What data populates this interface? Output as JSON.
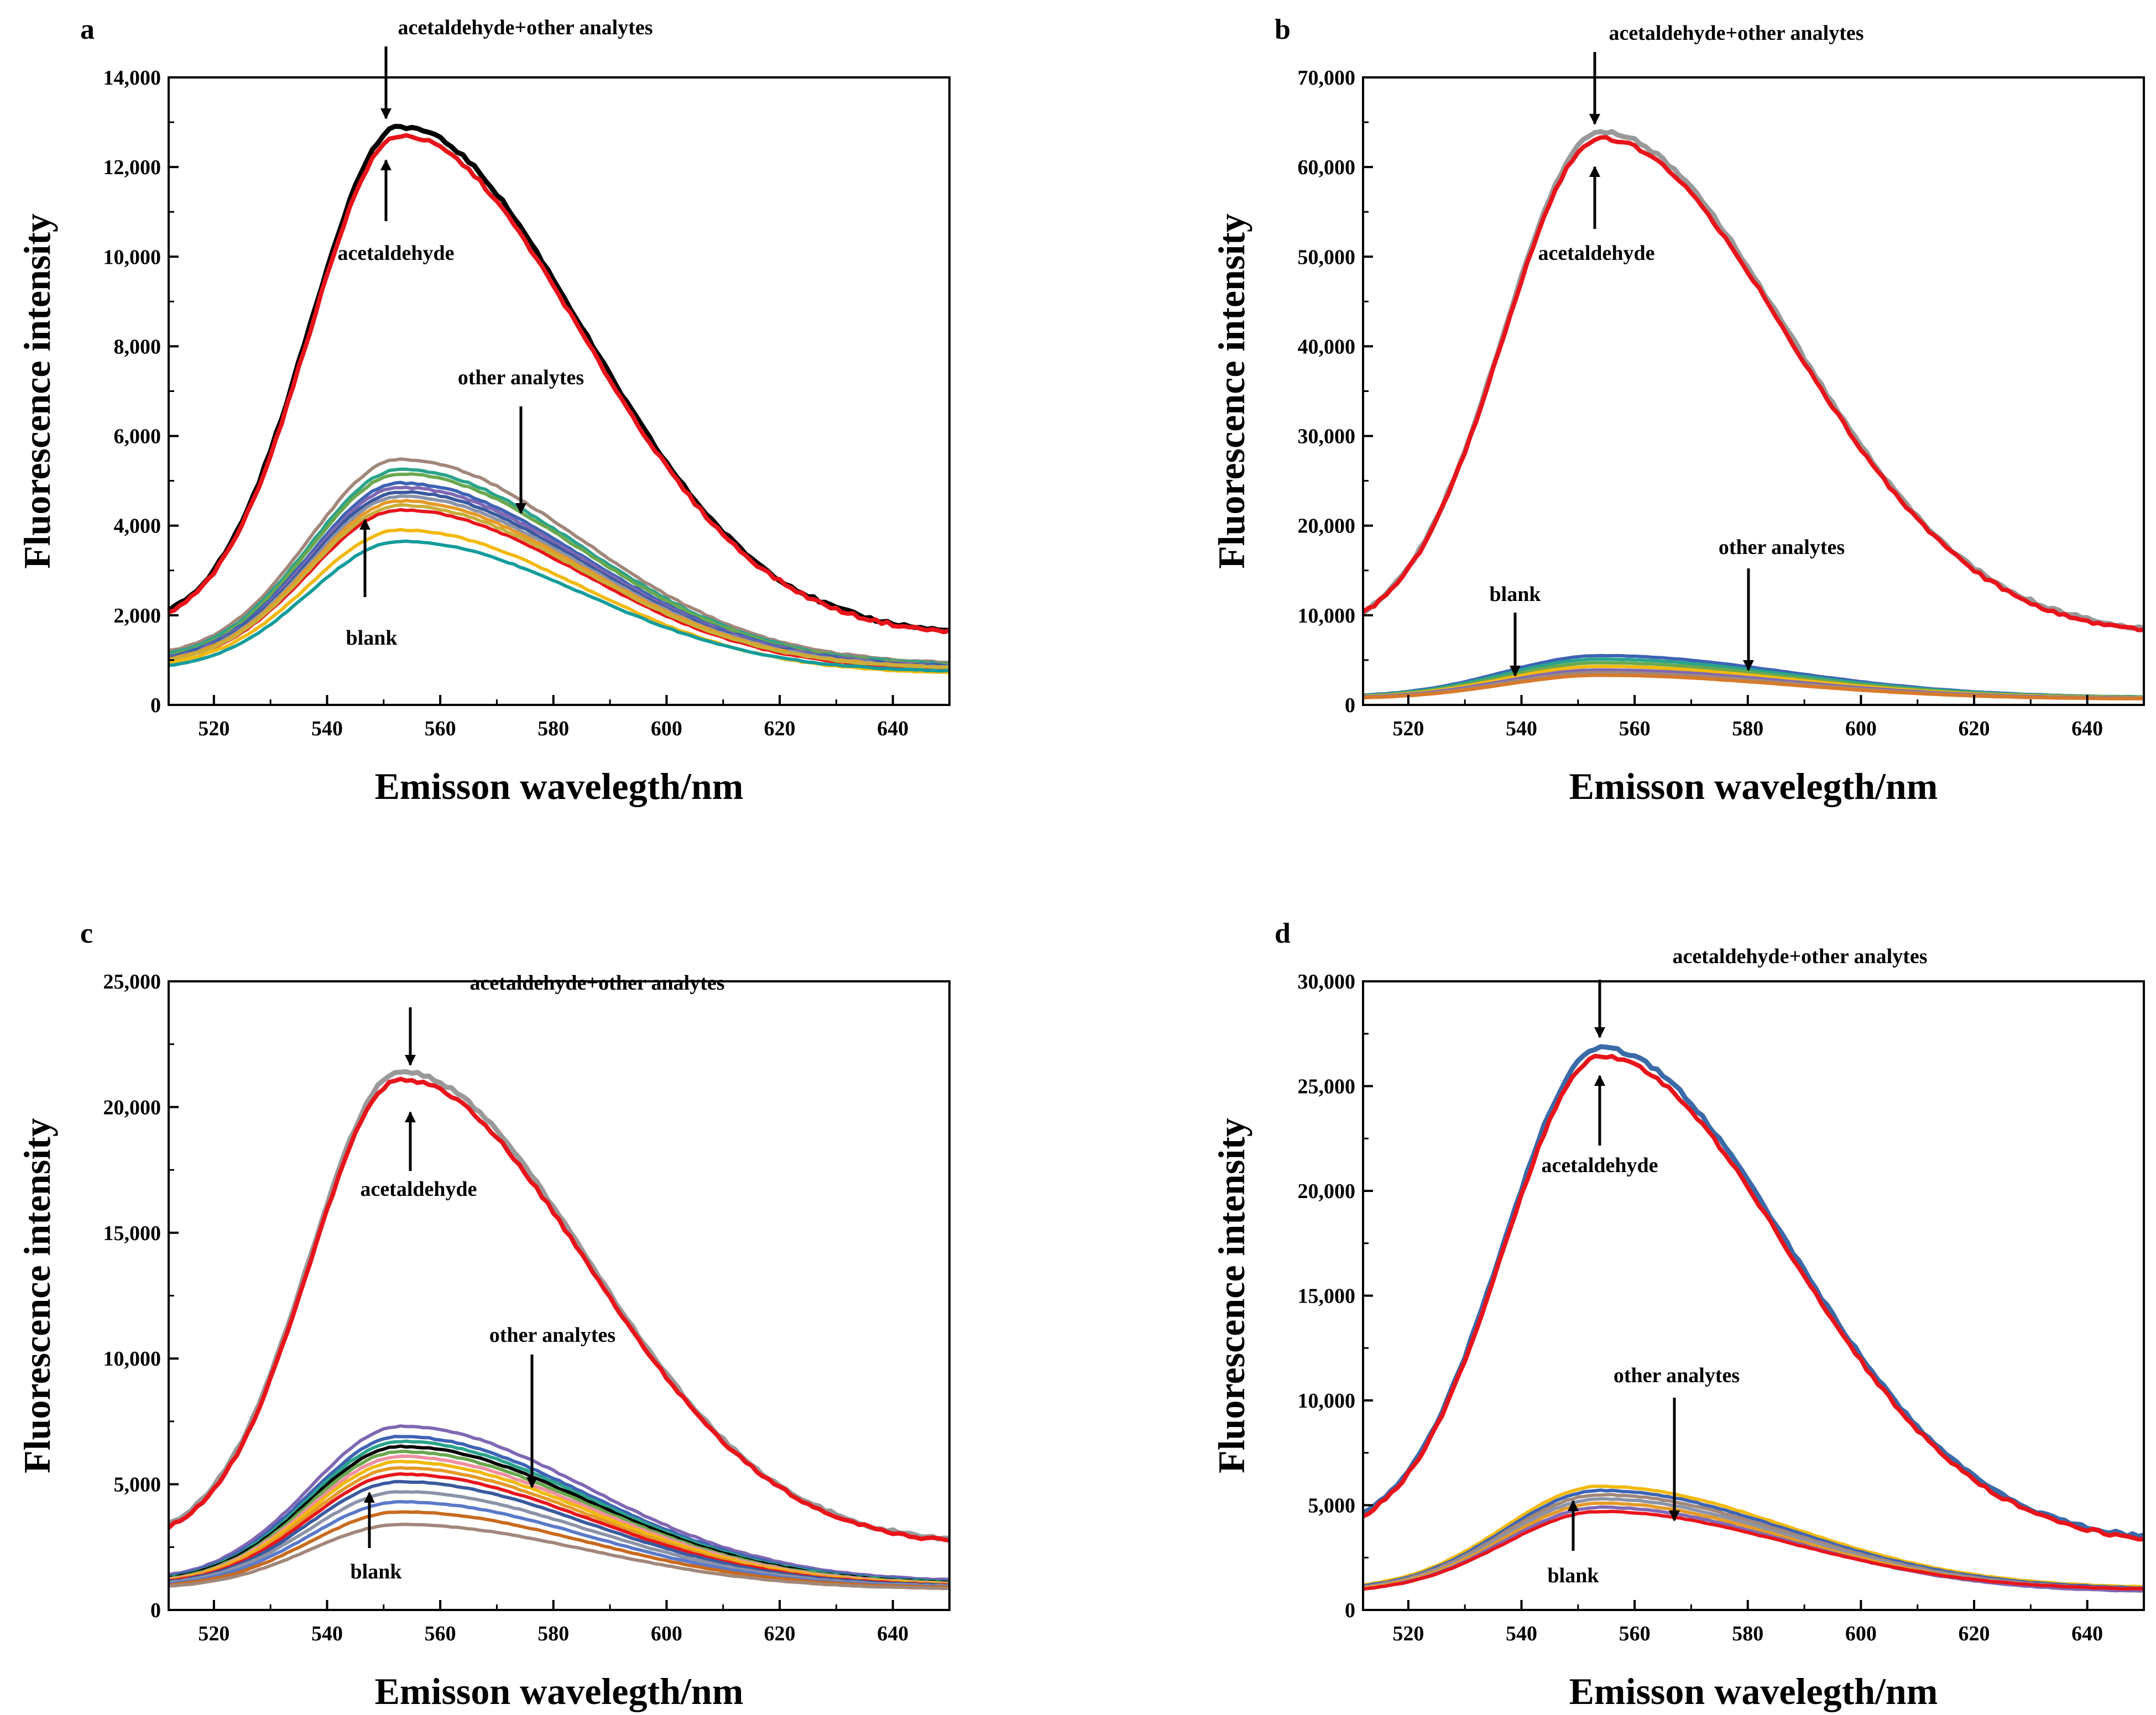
{
  "figure": {
    "description_free": true
  },
  "chart_data": [
    {
      "panel": "a",
      "type": "line",
      "xlabel": "Emisson wavelegth/nm",
      "ylabel": "Fluorescence intensity",
      "xlim": [
        512,
        650
      ],
      "ylim": [
        0,
        14000
      ],
      "xticks": [
        520,
        540,
        560,
        580,
        600,
        620,
        640
      ],
      "xtick_labels": [
        "520",
        "540",
        "560",
        "580",
        "600",
        "620",
        "640"
      ],
      "yticks": [
        0,
        2000,
        4000,
        6000,
        8000,
        10000,
        12000,
        14000
      ],
      "ytick_labels": [
        "0",
        "2,000",
        "4,000",
        "6,000",
        "8,000",
        "10,000",
        "12,000",
        "14,000"
      ],
      "peak": {
        "x": 553,
        "width_left": 16,
        "width_right": 32
      },
      "series": [
        {
          "name": "acetaldehyde+other analytes",
          "role": "main",
          "peak": 12900,
          "edge_left": 2100,
          "edge_right": 1650,
          "color": "#000000"
        },
        {
          "name": "acetaldehyde",
          "role": "main",
          "peak": 12700,
          "edge_left": 2050,
          "edge_right": 1630,
          "color": "#e8141b"
        },
        {
          "name": "blank",
          "role": "blank",
          "peak": 4350,
          "edge_left": 1000,
          "edge_right": 800,
          "color": "#e8141b"
        },
        {
          "name": "other analyte 1",
          "role": "other",
          "peak": 5480,
          "edge_left": 1200,
          "edge_right": 950,
          "color": "#a1877a"
        },
        {
          "name": "other analyte 2",
          "role": "other",
          "peak": 5250,
          "edge_left": 1150,
          "edge_right": 920,
          "color": "#2aa38b"
        },
        {
          "name": "other analyte 3",
          "role": "other",
          "peak": 5150,
          "edge_left": 1100,
          "edge_right": 900,
          "color": "#6aa84f"
        },
        {
          "name": "other analyte 4",
          "role": "other",
          "peak": 4950,
          "edge_left": 1080,
          "edge_right": 880,
          "color": "#3d63b4"
        },
        {
          "name": "other analyte 5",
          "role": "other",
          "peak": 4850,
          "edge_left": 1050,
          "edge_right": 870,
          "color": "#7f68b3"
        },
        {
          "name": "other analyte 6",
          "role": "other",
          "peak": 4750,
          "edge_left": 1050,
          "edge_right": 860,
          "color": "#3a5a9f"
        },
        {
          "name": "other analyte 7",
          "role": "other",
          "peak": 4650,
          "edge_left": 1030,
          "edge_right": 850,
          "color": "#8b93a8"
        },
        {
          "name": "other analyte 8",
          "role": "other",
          "peak": 4550,
          "edge_left": 1020,
          "edge_right": 840,
          "color": "#e59a27"
        },
        {
          "name": "other analyte 9",
          "role": "other",
          "peak": 4450,
          "edge_left": 1000,
          "edge_right": 830,
          "color": "#c9ae3a"
        },
        {
          "name": "other analyte 10",
          "role": "other",
          "peak": 3900,
          "edge_left": 950,
          "edge_right": 720,
          "color": "#f2b90c"
        },
        {
          "name": "other analyte 11",
          "role": "other",
          "peak": 3650,
          "edge_left": 880,
          "edge_right": 760,
          "color": "#149c9c"
        }
      ],
      "annotations": [
        {
          "text": "acetaldehyde+other analytes",
          "arrow": "down"
        },
        {
          "text": "acetaldehyde",
          "arrow": "up"
        },
        {
          "text": "other analytes",
          "arrow": "down"
        },
        {
          "text": "blank",
          "arrow": "up"
        }
      ]
    },
    {
      "panel": "b",
      "type": "line",
      "xlabel": "Emisson wavelegth/nm",
      "ylabel": "Fluorescence intensity",
      "xlim": [
        512,
        650
      ],
      "ylim": [
        0,
        70000
      ],
      "xticks": [
        520,
        540,
        560,
        580,
        600,
        620,
        640
      ],
      "xtick_labels": [
        "520",
        "540",
        "560",
        "580",
        "600",
        "620",
        "640"
      ],
      "yticks": [
        0,
        10000,
        20000,
        30000,
        40000,
        50000,
        60000,
        70000
      ],
      "ytick_labels": [
        "0",
        "10,000",
        "20,000",
        "30,000",
        "40,000",
        "50,000",
        "60,000",
        "70,000"
      ],
      "peak": {
        "x": 554,
        "width_left": 17,
        "width_right": 33
      },
      "series": [
        {
          "name": "acetaldehyde+other analytes",
          "role": "main",
          "peak": 63900,
          "edge_left": 10400,
          "edge_right": 8500,
          "color": "#999999"
        },
        {
          "name": "acetaldehyde",
          "role": "main",
          "peak": 63200,
          "edge_left": 10300,
          "edge_right": 8300,
          "color": "#e8141b"
        },
        {
          "name": "other analyte 1",
          "role": "other",
          "peak": 5500,
          "edge_left": 1100,
          "edge_right": 900,
          "color": "#3d63b4"
        },
        {
          "name": "other analyte 2",
          "role": "other",
          "peak": 5100,
          "edge_left": 1050,
          "edge_right": 880,
          "color": "#2aa38b"
        },
        {
          "name": "other analyte 3",
          "role": "other",
          "peak": 4700,
          "edge_left": 1000,
          "edge_right": 850,
          "color": "#6aa84f"
        },
        {
          "name": "other analyte 4",
          "role": "other",
          "peak": 4300,
          "edge_left": 950,
          "edge_right": 800,
          "color": "#f2b90c"
        },
        {
          "name": "other analyte 5",
          "role": "other",
          "peak": 3900,
          "edge_left": 900,
          "edge_right": 760,
          "color": "#7f68b3"
        },
        {
          "name": "other analyte 6",
          "role": "other",
          "peak": 3600,
          "edge_left": 850,
          "edge_right": 720,
          "color": "#a1877a"
        },
        {
          "name": "blank",
          "role": "blank",
          "peak": 3300,
          "edge_left": 800,
          "edge_right": 680,
          "color": "#d87a2a"
        }
      ],
      "annotations": [
        {
          "text": "acetaldehyde+other analytes",
          "arrow": "down"
        },
        {
          "text": "acetaldehyde",
          "arrow": "up"
        },
        {
          "text": "blank",
          "arrow": "down"
        },
        {
          "text": "other analytes",
          "arrow": "down"
        }
      ]
    },
    {
      "panel": "c",
      "type": "line",
      "xlabel": "Emisson wavelegth/nm",
      "ylabel": "Fluorescence intensity",
      "xlim": [
        512,
        650
      ],
      "ylim": [
        0,
        25000
      ],
      "xticks": [
        520,
        540,
        560,
        580,
        600,
        620,
        640
      ],
      "xtick_labels": [
        "520",
        "540",
        "560",
        "580",
        "600",
        "620",
        "640"
      ],
      "yticks": [
        0,
        5000,
        10000,
        15000,
        20000,
        25000
      ],
      "ytick_labels": [
        "0",
        "5,000",
        "10,000",
        "15,000",
        "20,000",
        "25,000"
      ],
      "peak": {
        "x": 553,
        "width_left": 16,
        "width_right": 33
      },
      "series": [
        {
          "name": "acetaldehyde+other analytes",
          "role": "main",
          "peak": 21400,
          "edge_left": 3400,
          "edge_right": 2800,
          "color": "#999999"
        },
        {
          "name": "acetaldehyde",
          "role": "main",
          "peak": 21100,
          "edge_left": 3300,
          "edge_right": 2750,
          "color": "#e8141b"
        },
        {
          "name": "other analyte 1",
          "role": "other",
          "peak": 7300,
          "edge_left": 1400,
          "edge_right": 1200,
          "color": "#7f68b3"
        },
        {
          "name": "other analyte 2",
          "role": "other",
          "peak": 6900,
          "edge_left": 1350,
          "edge_right": 1150,
          "color": "#3d63b4"
        },
        {
          "name": "other analyte 3",
          "role": "other",
          "peak": 6700,
          "edge_left": 1300,
          "edge_right": 1120,
          "color": "#2aa38b"
        },
        {
          "name": "other analyte 4",
          "role": "other",
          "peak": 6500,
          "edge_left": 1280,
          "edge_right": 1100,
          "color": "#000000"
        },
        {
          "name": "other analyte 5",
          "role": "other",
          "peak": 6300,
          "edge_left": 1250,
          "edge_right": 1080,
          "color": "#6aa84f"
        },
        {
          "name": "other analyte 6",
          "role": "other",
          "peak": 6100,
          "edge_left": 1220,
          "edge_right": 1060,
          "color": "#f08fa0"
        },
        {
          "name": "other analyte 7",
          "role": "other",
          "peak": 5900,
          "edge_left": 1200,
          "edge_right": 1040,
          "color": "#f2b90c"
        },
        {
          "name": "other analyte 8",
          "role": "other",
          "peak": 5650,
          "edge_left": 1180,
          "edge_right": 1020,
          "color": "#e59a27"
        },
        {
          "name": "other analyte 9",
          "role": "other",
          "peak": 5400,
          "edge_left": 1150,
          "edge_right": 1000,
          "color": "#e8141b"
        },
        {
          "name": "other analyte 10",
          "role": "other",
          "peak": 5100,
          "edge_left": 1120,
          "edge_right": 980,
          "color": "#3a5a9f"
        },
        {
          "name": "other analyte 11",
          "role": "other",
          "peak": 4700,
          "edge_left": 1100,
          "edge_right": 950,
          "color": "#8b93a8"
        },
        {
          "name": "other analyte 12",
          "role": "other",
          "peak": 4300,
          "edge_left": 1050,
          "edge_right": 920,
          "color": "#5b79c9"
        },
        {
          "name": "other analyte 13",
          "role": "other",
          "peak": 3900,
          "edge_left": 1000,
          "edge_right": 900,
          "color": "#c96a1e"
        },
        {
          "name": "blank",
          "role": "blank",
          "peak": 3400,
          "edge_left": 950,
          "edge_right": 860,
          "color": "#a1877a"
        }
      ],
      "annotations": [
        {
          "text": "acetaldehyde+other analytes",
          "arrow": "down"
        },
        {
          "text": "acetaldehyde",
          "arrow": "up"
        },
        {
          "text": "other analytes",
          "arrow": "down"
        },
        {
          "text": "blank",
          "arrow": "up"
        }
      ]
    },
    {
      "panel": "d",
      "type": "line",
      "xlabel": "Emisson wavelegth/nm",
      "ylabel": "Fluorescence intensity",
      "xlim": [
        512,
        650
      ],
      "ylim": [
        0,
        30000
      ],
      "xticks": [
        520,
        540,
        560,
        580,
        600,
        620,
        640
      ],
      "xtick_labels": [
        "520",
        "540",
        "560",
        "580",
        "600",
        "620",
        "640"
      ],
      "yticks": [
        0,
        5000,
        10000,
        15000,
        20000,
        25000,
        30000
      ],
      "ytick_labels": [
        "0",
        "5,000",
        "10,000",
        "15,000",
        "20,000",
        "25,000",
        "30,000"
      ],
      "peak": {
        "x": 554,
        "width_left": 17,
        "width_right": 33
      },
      "series": [
        {
          "name": "acetaldehyde+other analytes",
          "role": "main",
          "peak": 26800,
          "edge_left": 4600,
          "edge_right": 3500,
          "color": "#3a6aa8"
        },
        {
          "name": "acetaldehyde",
          "role": "main",
          "peak": 26400,
          "edge_left": 4500,
          "edge_right": 3400,
          "color": "#e8141b"
        },
        {
          "name": "other analyte 1",
          "role": "other",
          "peak": 5900,
          "edge_left": 1200,
          "edge_right": 1100,
          "color": "#f2b90c"
        },
        {
          "name": "other analyte 2",
          "role": "other",
          "peak": 5700,
          "edge_left": 1150,
          "edge_right": 1050,
          "color": "#3d63b4"
        },
        {
          "name": "other analyte 3",
          "role": "other",
          "peak": 5500,
          "edge_left": 1100,
          "edge_right": 1000,
          "color": "#a1877a"
        },
        {
          "name": "other analyte 4",
          "role": "other",
          "peak": 5300,
          "edge_left": 1080,
          "edge_right": 980,
          "color": "#8b93a8"
        },
        {
          "name": "other analyte 5",
          "role": "other",
          "peak": 5100,
          "edge_left": 1050,
          "edge_right": 950,
          "color": "#e59a27"
        },
        {
          "name": "other analyte 6",
          "role": "other",
          "peak": 4900,
          "edge_left": 1000,
          "edge_right": 900,
          "color": "#7f68b3"
        },
        {
          "name": "blank",
          "role": "blank",
          "peak": 4700,
          "edge_left": 1000,
          "edge_right": 1000,
          "color": "#e8141b"
        }
      ],
      "annotations": [
        {
          "text": "acetaldehyde+other analytes",
          "arrow": "down"
        },
        {
          "text": "acetaldehyde",
          "arrow": "up"
        },
        {
          "text": "other analytes",
          "arrow": "down"
        },
        {
          "text": "blank",
          "arrow": "up"
        }
      ]
    }
  ]
}
